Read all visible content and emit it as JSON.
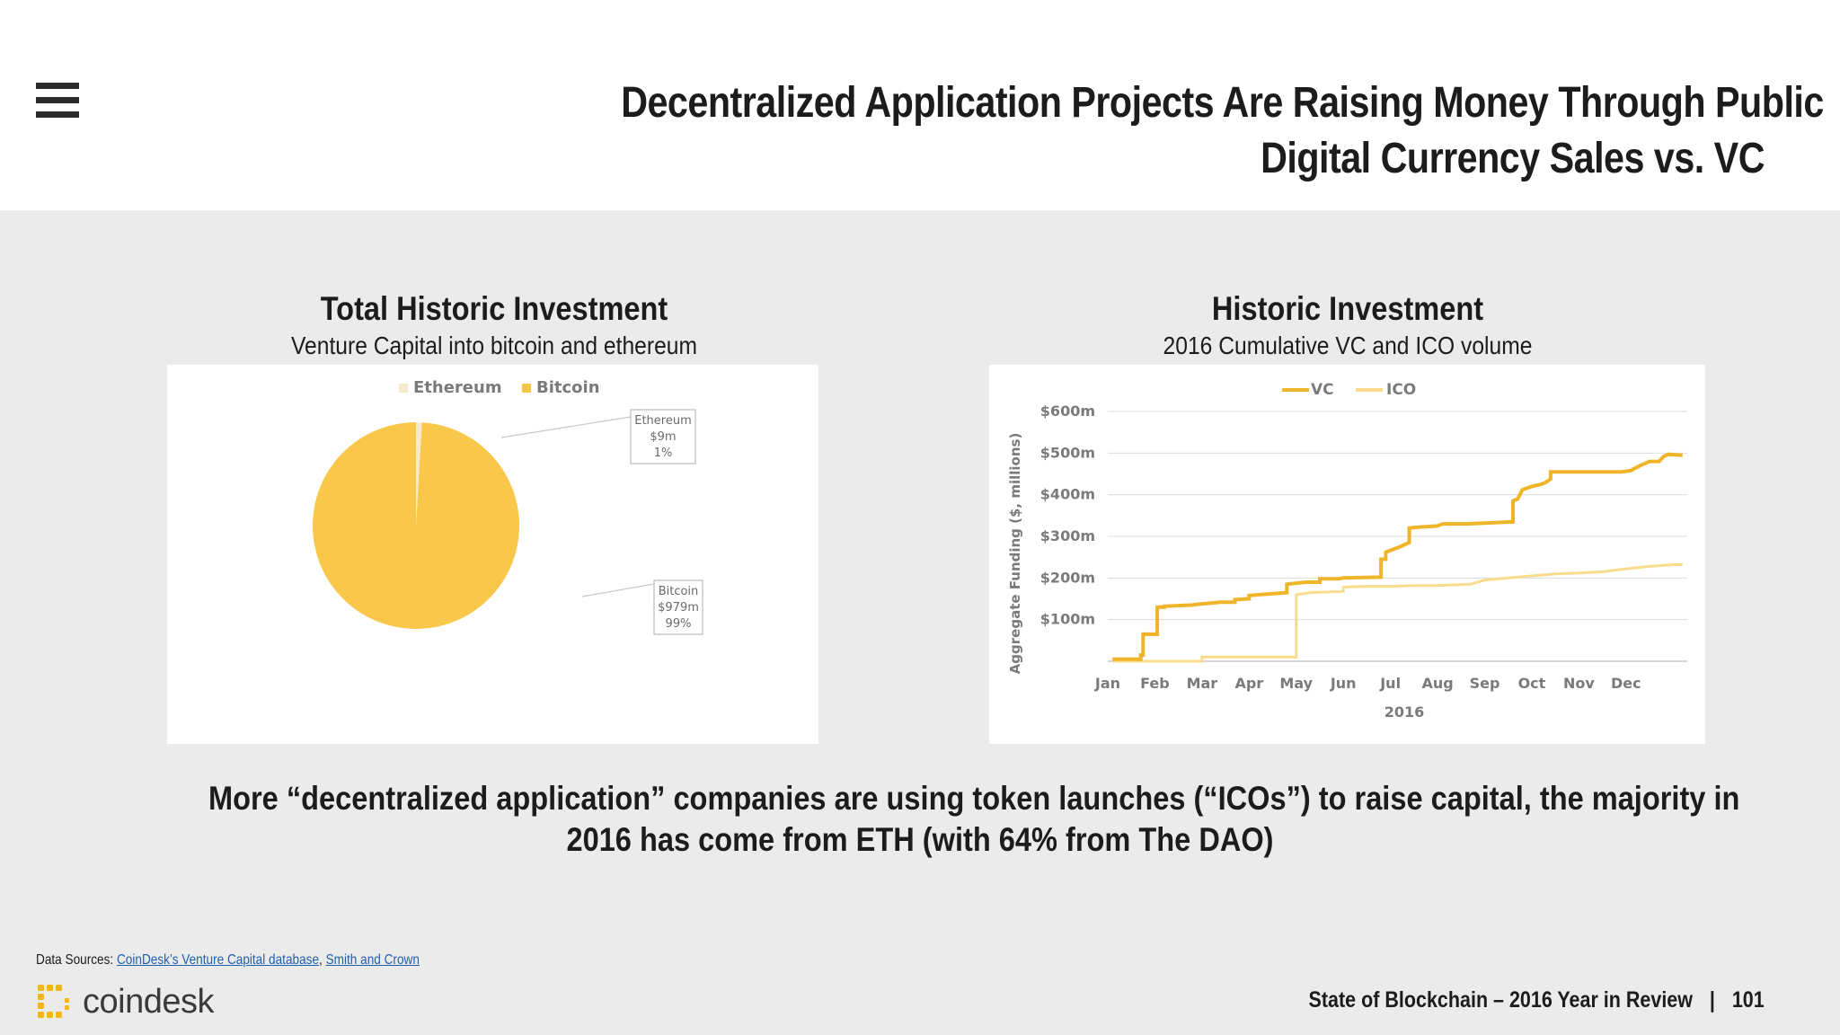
{
  "header": {
    "title_line1": "Decentralized Application Projects Are Raising Money Through Public",
    "title_line2": "Digital Currency Sales vs. VC"
  },
  "icons": {
    "menu": "hamburger-menu-icon",
    "logo": "coindesk-logo-icon"
  },
  "pie_chart": {
    "title": "Total Historic Investment",
    "subtitle": "Venture Capital into bitcoin and ethereum"
  },
  "line_chart": {
    "title": "Historic Investment",
    "subtitle": "2016 Cumulative VC and ICO volume"
  },
  "conclusion": {
    "line1": "More “decentralized application” companies are using token launches (“ICOs”) to raise capital, the majority in",
    "line2": "2016 has come from ETH (with 64% from The DAO)"
  },
  "footer": {
    "sources_label": "Data Sources:",
    "source1": "CoinDesk’s Venture Capital database",
    "separator": ",",
    "source2": "Smith and Crown",
    "logo_text": "coindesk",
    "report": "State of Blockchain – 2016 Year in Review",
    "divider": "|",
    "page": "101"
  },
  "colors": {
    "bitcoin": "#f9c84a",
    "ethereum": "#f3ead0",
    "vc": "#f0b429",
    "ico": "#f8dc8c",
    "grid": "#dcdcdc"
  },
  "chart_data": [
    {
      "type": "pie",
      "legend": [
        "Ethereum",
        "Bitcoin"
      ],
      "legend_position": "top",
      "slices": [
        {
          "name": "Ethereum",
          "value": 9,
          "label_lines": [
            "Ethereum",
            "$9m",
            "1%"
          ]
        },
        {
          "name": "Bitcoin",
          "value": 979,
          "label_lines": [
            "Bitcoin",
            "$979m",
            "99%"
          ]
        }
      ]
    },
    {
      "type": "line",
      "legend": [
        "VC",
        "ICO"
      ],
      "legend_position": "top",
      "xlabel": "2016",
      "ylabel": "Aggregate Funding ($, millions)",
      "x_ticks": [
        "Jan",
        "Feb",
        "Mar",
        "Apr",
        "May",
        "Jun",
        "Jul",
        "Aug",
        "Sep",
        "Oct",
        "Nov",
        "Dec"
      ],
      "y_ticks": [
        "$100m",
        "$200m",
        "$300m",
        "$400m",
        "$500m",
        "$600m"
      ],
      "y_tick_values": [
        100,
        200,
        300,
        400,
        500,
        600
      ],
      "ylim": [
        0,
        600
      ],
      "xlim": [
        0,
        12.3
      ],
      "grid": true,
      "series": [
        {
          "name": "VC",
          "points": [
            [
              0.1,
              5
            ],
            [
              0.7,
              5
            ],
            [
              0.7,
              15
            ],
            [
              0.75,
              15
            ],
            [
              0.75,
              65
            ],
            [
              1.05,
              65
            ],
            [
              1.05,
              130
            ],
            [
              1.2,
              130
            ],
            [
              1.2,
              132
            ],
            [
              1.8,
              135
            ],
            [
              2.0,
              138
            ],
            [
              2.4,
              142
            ],
            [
              2.7,
              142
            ],
            [
              2.7,
              148
            ],
            [
              3.0,
              150
            ],
            [
              3.0,
              158
            ],
            [
              3.8,
              165
            ],
            [
              3.8,
              185
            ],
            [
              4.2,
              190
            ],
            [
              4.5,
              190
            ],
            [
              4.5,
              198
            ],
            [
              4.9,
              198
            ],
            [
              5.0,
              200
            ],
            [
              5.8,
              202
            ],
            [
              5.8,
              245
            ],
            [
              5.9,
              245
            ],
            [
              5.9,
              262
            ],
            [
              6.2,
              275
            ],
            [
              6.4,
              285
            ],
            [
              6.4,
              320
            ],
            [
              6.6,
              322
            ],
            [
              7.0,
              325
            ],
            [
              7.1,
              330
            ],
            [
              7.6,
              330
            ],
            [
              8.0,
              332
            ],
            [
              8.6,
              335
            ],
            [
              8.6,
              385
            ],
            [
              8.7,
              390
            ],
            [
              8.8,
              412
            ],
            [
              9.0,
              420
            ],
            [
              9.2,
              425
            ],
            [
              9.3,
              430
            ],
            [
              9.4,
              438
            ],
            [
              9.4,
              455
            ],
            [
              9.8,
              455
            ],
            [
              10.2,
              455
            ],
            [
              10.5,
              455
            ],
            [
              10.9,
              455
            ],
            [
              11.1,
              458
            ],
            [
              11.3,
              470
            ],
            [
              11.5,
              480
            ],
            [
              11.7,
              480
            ],
            [
              11.8,
              492
            ],
            [
              11.9,
              497
            ],
            [
              12.2,
              495
            ]
          ]
        },
        {
          "name": "ICO",
          "points": [
            [
              0.1,
              0
            ],
            [
              2.0,
              0
            ],
            [
              2.0,
              10
            ],
            [
              4.0,
              10
            ],
            [
              4.0,
              160
            ],
            [
              4.3,
              165
            ],
            [
              5.0,
              168
            ],
            [
              5.0,
              178
            ],
            [
              5.5,
              180
            ],
            [
              6.0,
              180
            ],
            [
              6.5,
              182
            ],
            [
              7.0,
              182
            ],
            [
              7.7,
              185
            ],
            [
              8.0,
              195
            ],
            [
              8.5,
              200
            ],
            [
              9.0,
              205
            ],
            [
              9.5,
              210
            ],
            [
              10.0,
              212
            ],
            [
              10.5,
              215
            ],
            [
              11.0,
              222
            ],
            [
              11.5,
              228
            ],
            [
              12.0,
              232
            ],
            [
              12.2,
              232
            ]
          ]
        }
      ]
    }
  ]
}
